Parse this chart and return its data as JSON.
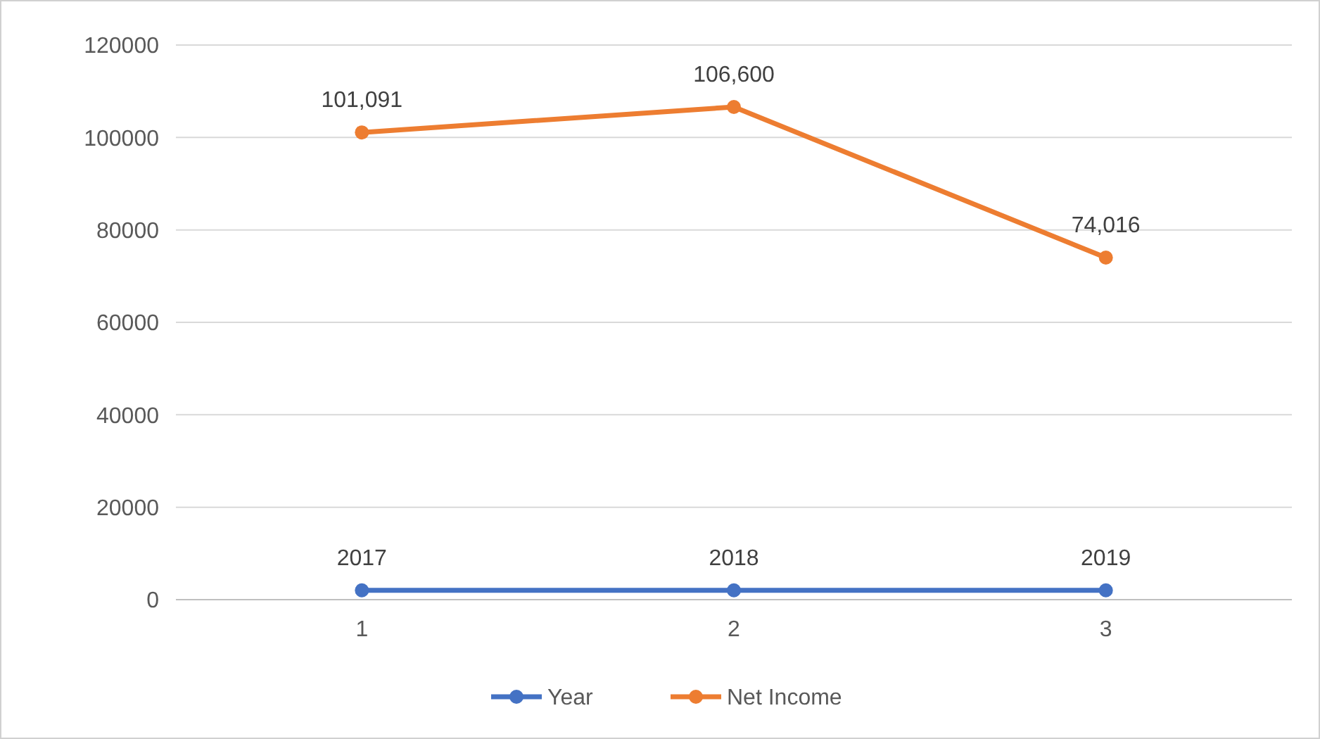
{
  "chart_data": {
    "type": "line",
    "categories": [
      "1",
      "2",
      "3"
    ],
    "series": [
      {
        "name": "Year",
        "color": "#4472c4",
        "values": [
          2017,
          2018,
          2019
        ],
        "value_labels": [
          "2017",
          "2018",
          "2019"
        ]
      },
      {
        "name": "Net Income",
        "color": "#ed7d31",
        "values": [
          101091,
          106600,
          74016
        ],
        "value_labels": [
          "101,091",
          "106,600",
          "74,016"
        ]
      }
    ],
    "ylim": [
      0,
      120000
    ],
    "yticks": [
      0,
      20000,
      40000,
      60000,
      80000,
      100000,
      120000
    ],
    "grid": "y",
    "legend": "bottom",
    "marker": "circle",
    "line_style": "solid"
  }
}
